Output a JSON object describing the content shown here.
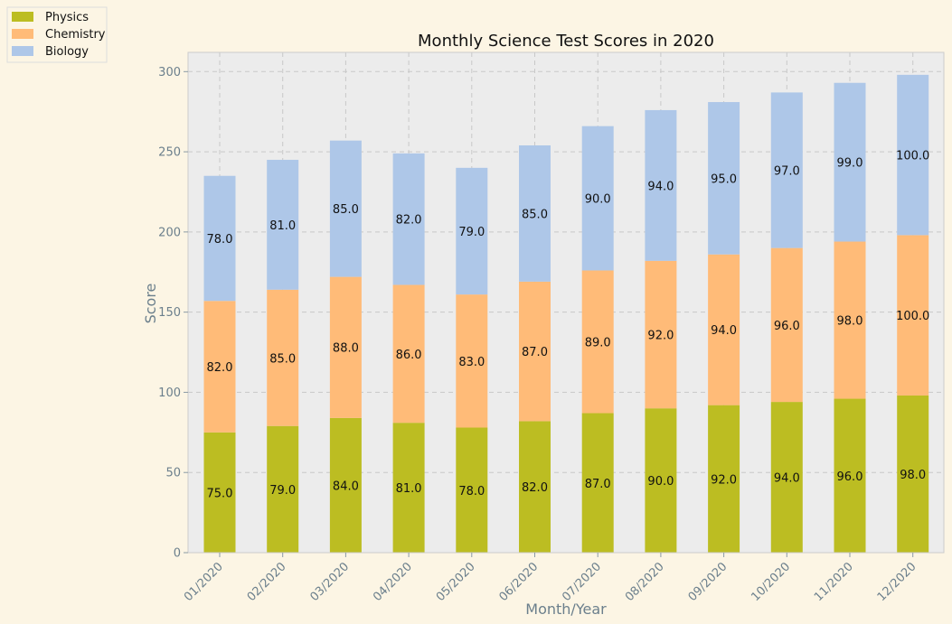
{
  "chart_data": {
    "type": "bar",
    "stacked": true,
    "title": "Monthly Science Test Scores in 2020",
    "xlabel": "Month/Year",
    "ylabel": "Score",
    "ylim": [
      0,
      312
    ],
    "yticks": [
      0,
      50,
      100,
      150,
      200,
      250,
      300
    ],
    "grid": true,
    "legend_position": "top-left",
    "categories": [
      "01/2020",
      "02/2020",
      "03/2020",
      "04/2020",
      "05/2020",
      "06/2020",
      "07/2020",
      "08/2020",
      "09/2020",
      "10/2020",
      "11/2020",
      "12/2020"
    ],
    "series": [
      {
        "name": "Physics",
        "color": "#bcbd22",
        "values": [
          75,
          79,
          84,
          81,
          78,
          82,
          87,
          90,
          92,
          94,
          96,
          98
        ]
      },
      {
        "name": "Chemistry",
        "color": "#ffbb78",
        "values": [
          82,
          85,
          88,
          86,
          83,
          87,
          89,
          92,
          94,
          96,
          98,
          100
        ]
      },
      {
        "name": "Biology",
        "color": "#aec7e8",
        "values": [
          78,
          81,
          85,
          82,
          79,
          85,
          90,
          94,
          95,
          97,
          99,
          100
        ]
      }
    ]
  }
}
